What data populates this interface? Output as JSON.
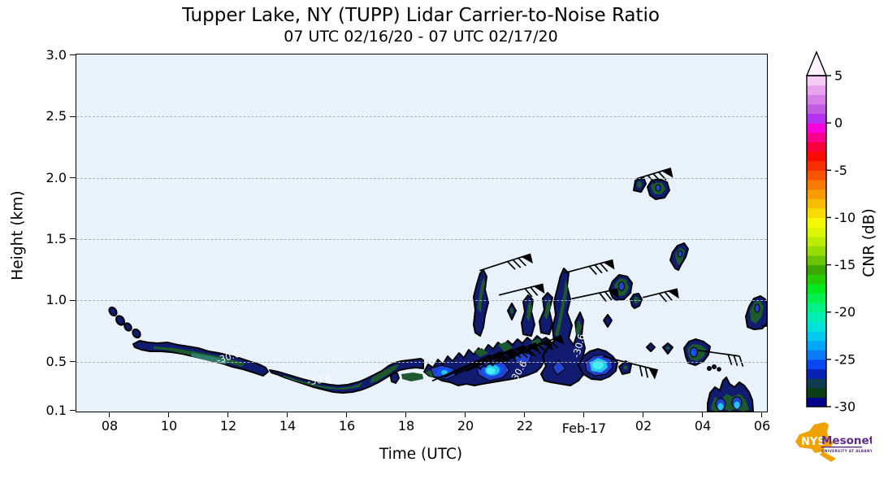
{
  "header": {
    "title": "Tupper Lake, NY (TUPP) Lidar Carrier-to-Noise Ratio",
    "subtitle": "07 UTC 02/16/20 - 07 UTC 02/17/20"
  },
  "axes": {
    "xlabel": "Time (UTC)",
    "ylabel": "Height (km)",
    "x_ticks": [
      {
        "label": "08",
        "t": 8
      },
      {
        "label": "10",
        "t": 10
      },
      {
        "label": "12",
        "t": 12
      },
      {
        "label": "14",
        "t": 14
      },
      {
        "label": "16",
        "t": 16
      },
      {
        "label": "18",
        "t": 18
      },
      {
        "label": "20",
        "t": 20
      },
      {
        "label": "22",
        "t": 22
      },
      {
        "label": "Feb-17",
        "t": 24,
        "is_date": true
      },
      {
        "label": "02",
        "t": 26
      },
      {
        "label": "04",
        "t": 28
      },
      {
        "label": "06",
        "t": 30
      }
    ],
    "y_ticks": [
      {
        "label": "3.0",
        "h": 3.0
      },
      {
        "label": "2.5",
        "h": 2.5
      },
      {
        "label": "2.0",
        "h": 2.0
      },
      {
        "label": "1.5",
        "h": 1.5
      },
      {
        "label": "1.0",
        "h": 1.0
      },
      {
        "label": "0.5",
        "h": 0.5
      },
      {
        "label": "0.1",
        "h": 0.1
      }
    ],
    "grid_heights": [
      0.5,
      1.0,
      1.5,
      2.0,
      2.5
    ]
  },
  "colorbar": {
    "label": "CNR (dB)",
    "tick_values": [
      5,
      0,
      -5,
      -10,
      -15,
      -20,
      -25,
      -30
    ],
    "min": -30,
    "max": 5,
    "extend_max": true,
    "arrow_color": "#fdf2fd",
    "segment_colors": [
      "#00008c",
      "#0e3e16",
      "#103c52",
      "#0a22b4",
      "#0a46f0",
      "#0a7af8",
      "#00a6f8",
      "#00caee",
      "#00e2d8",
      "#00eeb4",
      "#00f284",
      "#00f050",
      "#00e81e",
      "#24cc00",
      "#3ba600",
      "#6cc400",
      "#97dc00",
      "#bcec00",
      "#dcf600",
      "#f4f800",
      "#f8dc00",
      "#f8bc00",
      "#f89c00",
      "#f87800",
      "#f85400",
      "#f83000",
      "#f80c00",
      "#f8003c",
      "#f8008c",
      "#f800dc",
      "#b232f0",
      "#c45ce2",
      "#d67ee8",
      "#e8a2ee",
      "#f6ccf6"
    ]
  },
  "chart_data": {
    "type": "heatmap",
    "title": "Tupper Lake, NY (TUPP) Lidar Carrier-to-Noise Ratio",
    "subtitle": "07 UTC 02/16/20 - 07 UTC 02/17/20",
    "xlabel": "Time (UTC)",
    "ylabel": "Height (km)",
    "value_label": "CNR (dB)",
    "value_range": [
      -30,
      5
    ],
    "ylim": [
      0.1,
      3.0
    ],
    "x_axis": {
      "start": "02/16 07:00 UTC",
      "end": "02/17 07:00 UTC",
      "tick_labels": [
        "08",
        "10",
        "12",
        "14",
        "16",
        "18",
        "20",
        "22",
        "Feb-17",
        "02",
        "04",
        "06"
      ]
    },
    "grid": "horizontal dashed at 0.5 km intervals",
    "legend_position": "right colorbar",
    "contour_line_db": -30.6,
    "band_cnr_db_range": [
      -30,
      -27
    ],
    "boundary_layer_top_km": [
      {
        "t": 8.2,
        "h": 0.92
      },
      {
        "t": 8.5,
        "h": 0.86
      },
      {
        "t": 8.8,
        "h": 0.8
      },
      {
        "t": 9.0,
        "h": 0.68
      },
      {
        "t": 10.0,
        "h": 0.64
      },
      {
        "t": 11.0,
        "h": 0.61
      },
      {
        "t": 12.0,
        "h": 0.57
      },
      {
        "t": 13.0,
        "h": 0.52
      },
      {
        "t": 14.0,
        "h": 0.46
      },
      {
        "t": 15.0,
        "h": 0.38
      },
      {
        "t": 16.0,
        "h": 0.31
      },
      {
        "t": 17.0,
        "h": 0.35
      },
      {
        "t": 18.0,
        "h": 0.43
      },
      {
        "t": 19.0,
        "h": 0.5
      },
      {
        "t": 20.0,
        "h": 0.57
      },
      {
        "t": 20.4,
        "h": 1.26
      },
      {
        "t": 21.1,
        "h": 1.06
      },
      {
        "t": 22.4,
        "h": 1.27
      },
      {
        "t": 23.3,
        "h": 1.25
      },
      {
        "t": 24.1,
        "h": 0.62
      },
      {
        "t": 24.5,
        "h": 0.55
      }
    ],
    "cnr_maxima": [
      {
        "t": 20.75,
        "h": 0.44,
        "cnr_db": -24
      },
      {
        "t": 24.45,
        "h": 0.47,
        "cnr_db": -24
      },
      {
        "t": 29.5,
        "h": 0.15,
        "cnr_db": -24
      }
    ],
    "isolated_echoes": [
      {
        "t": 25.0,
        "h": 1.0,
        "cnr_db": -28
      },
      {
        "t": 25.8,
        "h": 1.03,
        "cnr_db": -29
      },
      {
        "t": 26.85,
        "h": 1.95,
        "cnr_db": -28
      },
      {
        "t": 27.1,
        "h": 1.92,
        "cnr_db": -28
      },
      {
        "t": 27.6,
        "h": 1.32,
        "cnr_db": -28
      },
      {
        "t": 27.9,
        "h": 0.57,
        "cnr_db": -27
      },
      {
        "t": 29.4,
        "h": 0.18,
        "cnr_db": -25
      },
      {
        "t": 30.1,
        "h": 0.85,
        "cnr_db": -28
      }
    ]
  },
  "contour_labels": [
    {
      "text": "-30.6",
      "t": 12.0,
      "h": 0.52,
      "rot": -18
    },
    {
      "text": "-30.6",
      "t": 15.05,
      "h": 0.33,
      "rot": -8
    },
    {
      "text": "-30.6",
      "t": 21.85,
      "h": 0.41,
      "rot": -60
    },
    {
      "text": "-30.6",
      "t": 23.9,
      "h": 0.63,
      "rot": -75
    }
  ],
  "wind_barbs": [
    {
      "t": 18.85,
      "h": 0.35,
      "ang": -24,
      "len": 78,
      "flags": 1,
      "barbs": 2,
      "speed_kt": 70,
      "dir": "SW"
    },
    {
      "t": 19.25,
      "h": 0.38,
      "ang": -24,
      "len": 78,
      "flags": 1,
      "barbs": 2,
      "speed_kt": 70,
      "dir": "SW"
    },
    {
      "t": 19.6,
      "h": 0.4,
      "ang": -24,
      "len": 78,
      "flags": 1,
      "barbs": 2,
      "speed_kt": 70,
      "dir": "SW"
    },
    {
      "t": 20.0,
      "h": 0.43,
      "ang": -24,
      "len": 78,
      "flags": 1,
      "barbs": 2,
      "speed_kt": 70,
      "dir": "SW"
    },
    {
      "t": 20.4,
      "h": 0.45,
      "ang": -24,
      "len": 78,
      "flags": 1,
      "barbs": 2,
      "speed_kt": 70,
      "dir": "SW"
    },
    {
      "t": 20.85,
      "h": 0.48,
      "ang": -24,
      "len": 78,
      "flags": 1,
      "barbs": 3,
      "speed_kt": 80,
      "dir": "SW"
    },
    {
      "t": 21.25,
      "h": 0.51,
      "ang": -24,
      "len": 78,
      "flags": 1,
      "barbs": 3,
      "speed_kt": 80,
      "dir": "SW"
    },
    {
      "t": 20.45,
      "h": 1.25,
      "ang": -18,
      "len": 66,
      "flags": 1,
      "barbs": 3,
      "speed_kt": 80,
      "dir": "SW"
    },
    {
      "t": 21.1,
      "h": 1.05,
      "ang": -14,
      "len": 56,
      "flags": 1,
      "barbs": 2,
      "speed_kt": 70,
      "dir": "SW"
    },
    {
      "t": 23.3,
      "h": 1.23,
      "ang": -15,
      "len": 62,
      "flags": 1,
      "barbs": 3,
      "speed_kt": 80,
      "dir": "SW"
    },
    {
      "t": 23.55,
      "h": 1.02,
      "ang": -12,
      "len": 58,
      "flags": 1,
      "barbs": 2,
      "speed_kt": 70,
      "dir": "SW"
    },
    {
      "t": 24.6,
      "h": 0.55,
      "ang": 14,
      "len": 70,
      "flags": 1,
      "barbs": 2,
      "speed_kt": 70,
      "dir": "SW"
    },
    {
      "t": 25.95,
      "h": 1.03,
      "ang": -14,
      "len": 44,
      "flags": 1,
      "barbs": 2,
      "speed_kt": 70,
      "dir": "SW"
    },
    {
      "t": 25.75,
      "h": 2.0,
      "ang": -17,
      "len": 44,
      "flags": 1,
      "barbs": 3,
      "speed_kt": 80,
      "dir": "SW"
    },
    {
      "t": 27.8,
      "h": 0.6,
      "ang": 8,
      "len": 52,
      "flags": 0,
      "barbs": 3,
      "speed_kt": 35,
      "dir": "SW"
    },
    {
      "t": 29.95,
      "h": 0.8,
      "ang": 3,
      "len": 24,
      "flags": 0,
      "barbs": 1,
      "speed_kt": 10,
      "dir": "SW"
    }
  ],
  "colors": {
    "plot_bg": "#e9f2fb",
    "grid": "#a9b2ba",
    "navy": "#111c70",
    "dark_green": "#1c5a2d",
    "teal": "#2f7d6b",
    "blue": "#2443cf",
    "bright_blue": "#0f5af5",
    "cyan": "#27c5f2",
    "aqua": "#49eef2",
    "barb": "#000000",
    "contour_label": "#ffffff",
    "logo_gold": "#f0a202",
    "logo_purple": "#5b2b8d"
  },
  "logo": {
    "nys": "NYS",
    "mesonet": "Mesonet",
    "tagline": "UNIVERSITY AT ALBANY"
  }
}
